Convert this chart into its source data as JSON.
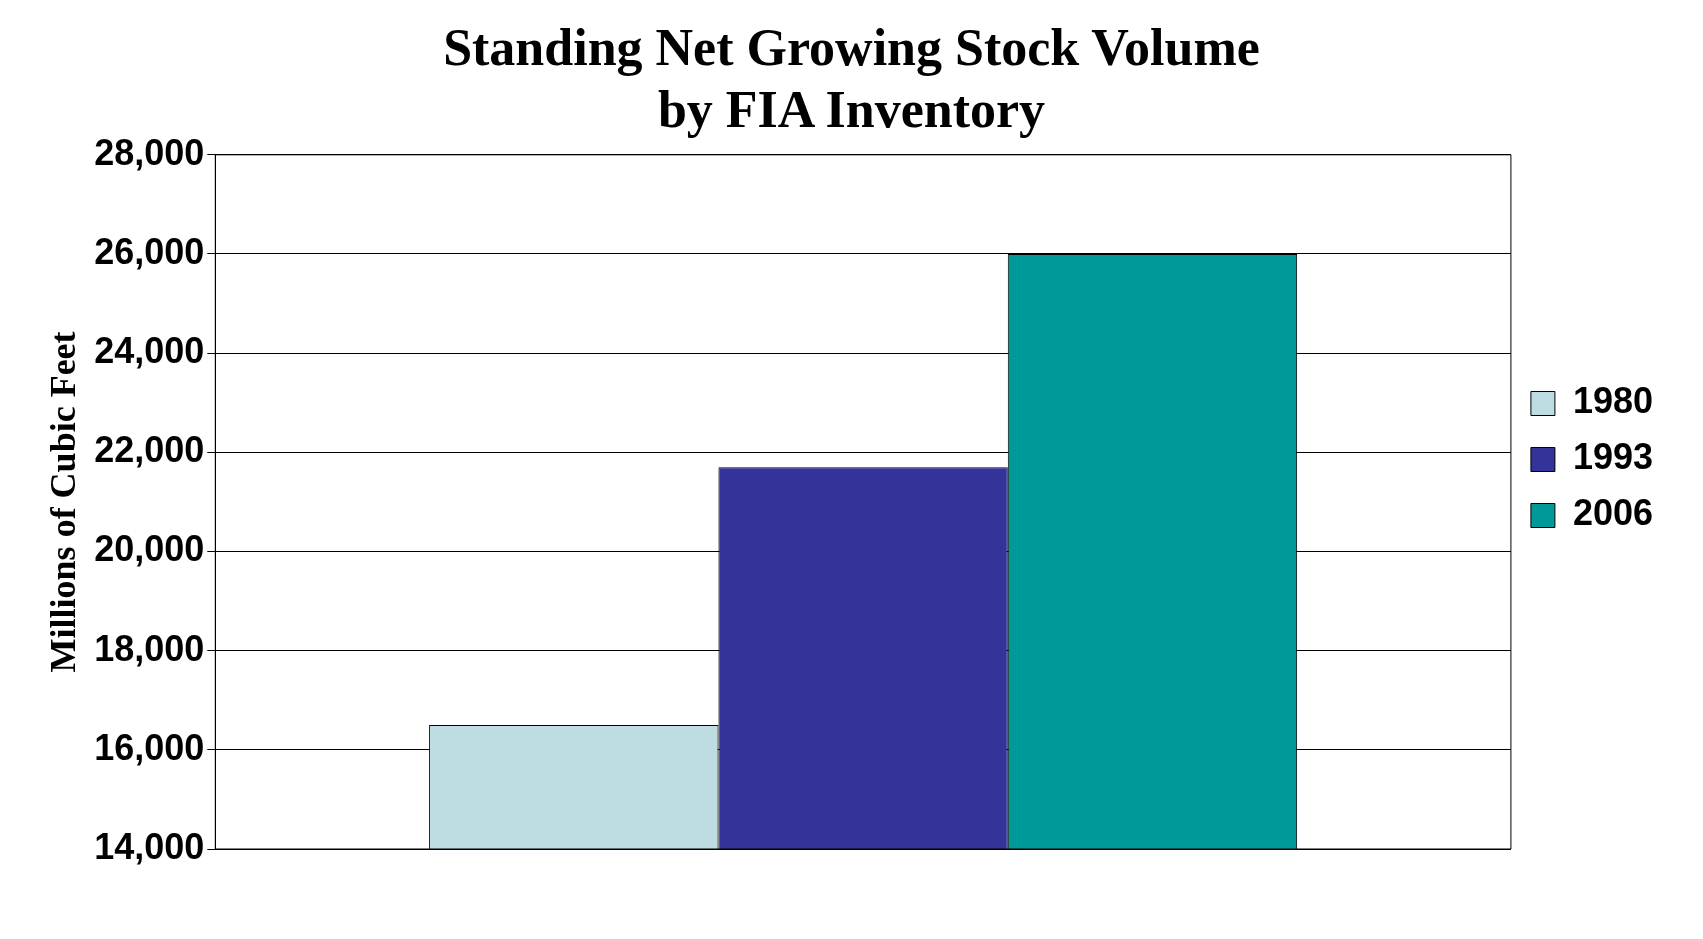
{
  "chart_data": {
    "type": "bar",
    "title": "Standing Net Growing Stock Volume\nby FIA Inventory",
    "ylabel": "Millions of Cubic Feet",
    "categories": [
      null
    ],
    "series": [
      {
        "name": "1980",
        "color": "#bddde2",
        "values": [
          16500
        ]
      },
      {
        "name": "1993",
        "color": "#333399",
        "values": [
          21700
        ]
      },
      {
        "name": "2006",
        "color": "#009999",
        "values": [
          26000
        ]
      }
    ],
    "ylim": [
      14000,
      28000
    ],
    "yticks": [
      {
        "value": 14000,
        "label": "14,000"
      },
      {
        "value": 16000,
        "label": "16,000"
      },
      {
        "value": 18000,
        "label": "18,000"
      },
      {
        "value": 20000,
        "label": "20,000"
      },
      {
        "value": 22000,
        "label": "22,000"
      },
      {
        "value": 24000,
        "label": "24,000"
      },
      {
        "value": 26000,
        "label": "26,000"
      },
      {
        "value": 28000,
        "label": "28,000"
      }
    ],
    "grid": "y",
    "legend": "right"
  }
}
